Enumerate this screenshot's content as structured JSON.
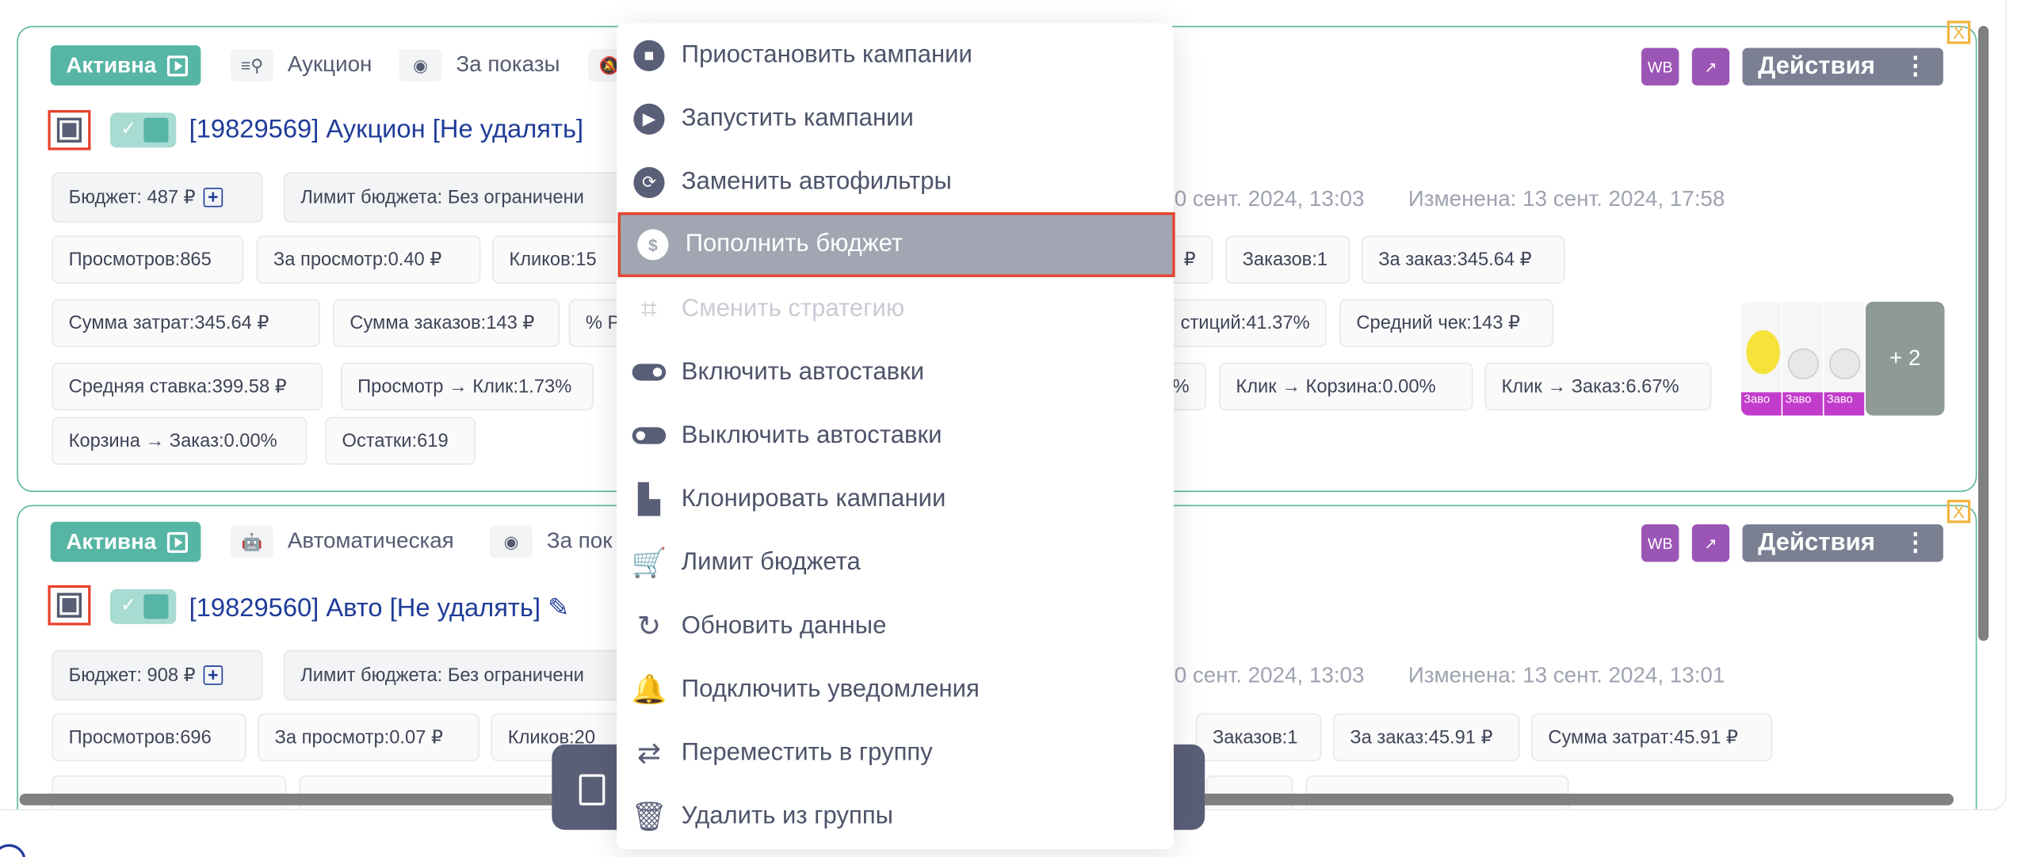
{
  "campaigns": [
    {
      "status": "Активна",
      "type": "Аукцион",
      "payment": "За показы",
      "title": "[19829569] Аукцион [Не удалять]",
      "budget": "Бюджет: 487 ₽",
      "limit": "Лимит бюджета: Без ограничени",
      "created": "10 сент. 2024, 13:03",
      "modified": "Изменена: 13 сент. 2024, 17:58",
      "row1": [
        "Просмотров:865",
        "За просмотр:0.40 ₽",
        "Кликов:15",
        "₽",
        "Заказов:1",
        "За заказ:345.64 ₽"
      ],
      "row2": [
        "Сумма затрат:345.64 ₽",
        "Сумма заказов:143 ₽",
        "% Р",
        "стиций:41.37%",
        "Средний чек:143 ₽"
      ],
      "row3": [
        "Средняя ставка:399.58 ₽",
        "Просмотр → Клик:1.73%",
        "%",
        "Клик → Корзина:0.00%",
        "Клик → Заказ:6.67%"
      ],
      "row4": [
        "Корзина → Заказ:0.00%",
        "Остатки:619"
      ],
      "thumb_label": "Заво",
      "more": "+ 2"
    },
    {
      "status": "Активна",
      "type": "Автоматическая",
      "payment": "За пок",
      "title": "[19829560] Авто [Не удалять]",
      "budget": "Бюджет: 908 ₽",
      "limit": "Лимит бюджета: Без ограничени",
      "created": "10 сент. 2024, 13:03",
      "modified": "Изменена: 13 сент. 2024, 13:01",
      "row1": [
        "Просмотров:696",
        "За просмотр:0.07 ₽",
        "Кликов:20",
        "Заказов:1",
        "За заказ:45.91 ₽",
        "Сумма затрат:45.91 ₽"
      ]
    }
  ],
  "badges": {
    "wb": "WB",
    "actions": "Действия",
    "close": "X"
  },
  "menu": [
    {
      "label": "Приостановить кампании",
      "icon": "stop-circle-icon"
    },
    {
      "label": "Запустить кампании",
      "icon": "play-circle-icon"
    },
    {
      "label": "Заменить автофильтры",
      "icon": "sync-circle-icon"
    },
    {
      "label": "Пополнить бюджет",
      "icon": "dollar-circle-icon",
      "highlighted": true
    },
    {
      "label": "Сменить стратегию",
      "icon": "crop-icon",
      "disabled": true
    },
    {
      "label": "Включить автоставки",
      "icon": "toggle-on-icon"
    },
    {
      "label": "Выключить автоставки",
      "icon": "toggle-off-icon"
    },
    {
      "label": "Клонировать кампании",
      "icon": "file-copy-icon"
    },
    {
      "label": "Лимит бюджета",
      "icon": "cart-icon"
    },
    {
      "label": "Обновить данные",
      "icon": "refresh-icon"
    },
    {
      "label": "Подключить уведомления",
      "icon": "bell-icon"
    },
    {
      "label": "Переместить в группу",
      "icon": "move-group-icon"
    },
    {
      "label": "Удалить из группы",
      "icon": "trash-icon"
    }
  ],
  "colors": {
    "accent": "#56b5a5",
    "title": "#1f3c99",
    "highlight": "#a1a6b2",
    "marker": "#e8412c",
    "purple": "#9b55b5"
  }
}
